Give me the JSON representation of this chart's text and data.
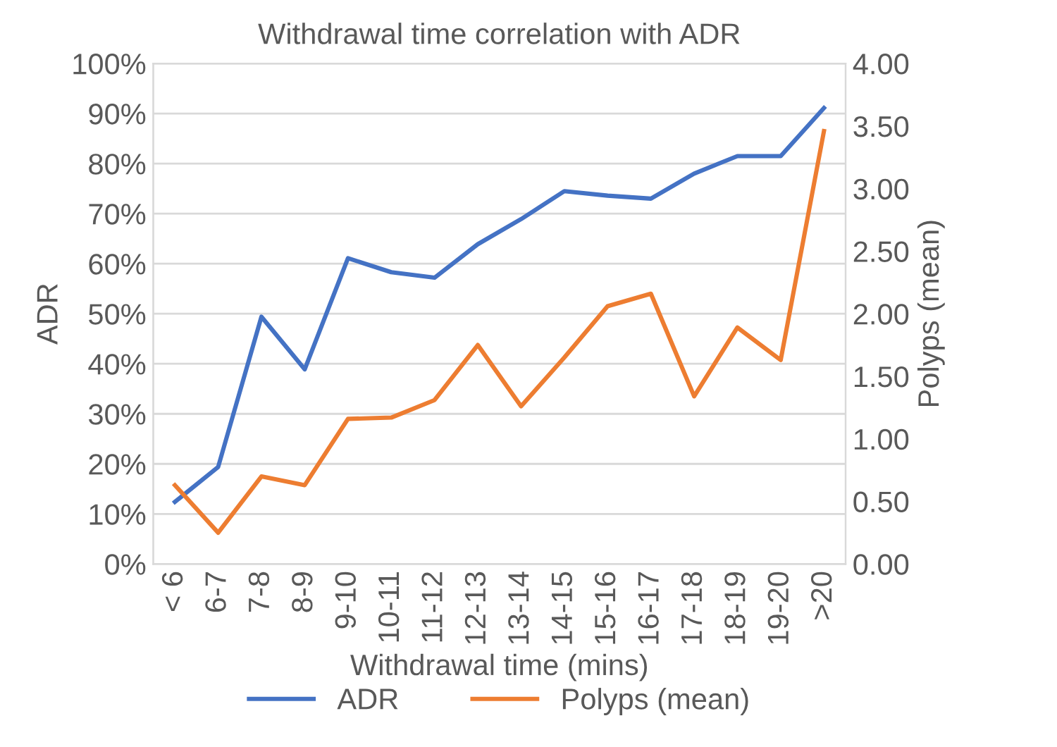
{
  "chart_data": {
    "type": "line",
    "title": "Withdrawal time correlation with ADR",
    "xlabel": "Withdrawal time (mins)",
    "ylabel": "ADR",
    "y2label": "Polyps (mean)",
    "categories": [
      "< 6",
      "6-7",
      "7-8",
      "8-9",
      "9-10",
      "10-11",
      "11-12",
      "12-13",
      "13-14",
      "14-15",
      "15-16",
      "16-17",
      "17-18",
      "18-19",
      "19-20",
      ">20"
    ],
    "series": [
      {
        "name": "ADR",
        "color": "#4472c4",
        "values": [
          12.4,
          19.4,
          49.4,
          38.9,
          61.1,
          58.3,
          57.2,
          63.9,
          68.9,
          74.5,
          73.6,
          73.0,
          78.0,
          81.5,
          81.5,
          91.1
        ]
      },
      {
        "name": "Polyps (mean)",
        "color": "#ed7d31",
        "axis": "y2",
        "values": [
          0.63,
          0.25,
          0.7,
          0.63,
          1.16,
          1.17,
          1.31,
          1.75,
          1.26,
          1.65,
          2.06,
          2.16,
          1.34,
          1.89,
          1.63,
          3.46
        ]
      }
    ],
    "ylim": [
      0,
      100
    ],
    "yticks": [
      {
        "value": 0,
        "label": "0%"
      },
      {
        "value": 10,
        "label": "10%"
      },
      {
        "value": 20,
        "label": "20%"
      },
      {
        "value": 30,
        "label": "30%"
      },
      {
        "value": 40,
        "label": "40%"
      },
      {
        "value": 50,
        "label": "50%"
      },
      {
        "value": 60,
        "label": "60%"
      },
      {
        "value": 70,
        "label": "70%"
      },
      {
        "value": 80,
        "label": "80%"
      },
      {
        "value": 90,
        "label": "90%"
      },
      {
        "value": 100,
        "label": "100%"
      }
    ],
    "y2lim": [
      0,
      4
    ],
    "y2ticks": [
      {
        "value": 0,
        "label": "0.00"
      },
      {
        "value": 0.5,
        "label": "0.50"
      },
      {
        "value": 1,
        "label": "1.00"
      },
      {
        "value": 1.5,
        "label": "1.50"
      },
      {
        "value": 2,
        "label": "2.00"
      },
      {
        "value": 2.5,
        "label": "2.50"
      },
      {
        "value": 3,
        "label": "3.00"
      },
      {
        "value": 3.5,
        "label": "3.50"
      },
      {
        "value": 4,
        "label": "4.00"
      }
    ],
    "grid": "y",
    "legend": "bottom",
    "marker": "none",
    "line_style": "solid"
  }
}
